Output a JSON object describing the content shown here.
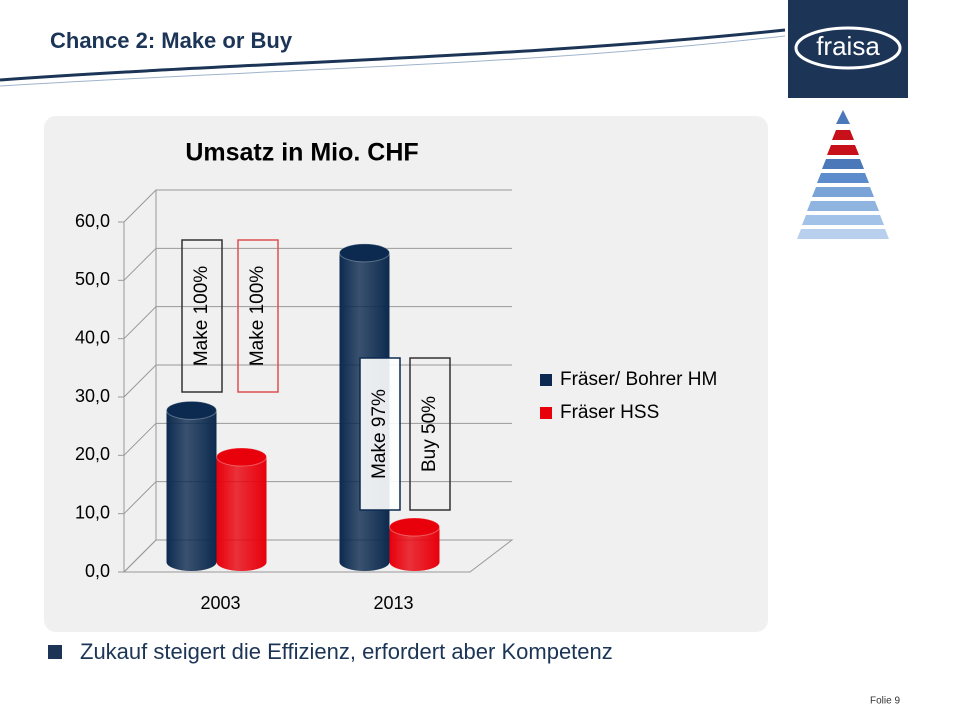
{
  "header": {
    "title": "Chance 2:  Make or Buy",
    "logo": "fraisa"
  },
  "chart_data": {
    "type": "bar3d",
    "title": "Umsatz in Mio. CHF",
    "categories": [
      "2003",
      "2013"
    ],
    "series": [
      {
        "name": "Fräser/ Bohrer HM",
        "color": "#0c2a4f",
        "values": [
          26,
          53
        ]
      },
      {
        "name": "Fräser HSS",
        "color": "#e8000b",
        "values": [
          18,
          6
        ]
      }
    ],
    "ylim": [
      0,
      60
    ],
    "yticks": [
      {
        "value": 0,
        "label": "0,0"
      },
      {
        "value": 10,
        "label": "10,0"
      },
      {
        "value": 20,
        "label": "20,0"
      },
      {
        "value": 30,
        "label": "30,0"
      },
      {
        "value": 40,
        "label": "40,0"
      },
      {
        "value": 50,
        "label": "50,0"
      },
      {
        "value": 60,
        "label": "60,0"
      }
    ],
    "grid": true,
    "legend": "right",
    "annotations": [
      "Make 100%",
      "Make 100%",
      "Make 97%",
      "Buy 50%"
    ]
  },
  "bullet": "Zukauf steigert die Effizienz, erfordert aber Kompetenz",
  "footer": "Folie 9"
}
